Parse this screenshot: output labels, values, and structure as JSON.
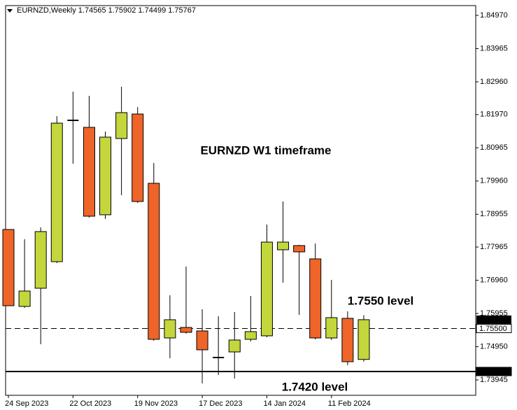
{
  "chart_data": {
    "type": "candlestick",
    "title": "EURNZD,Weekly  1.74565 1.75902 1.74499 1.75767",
    "categories": [
      "24 Sep 2023",
      null,
      null,
      null,
      "22 Oct 2023",
      null,
      null,
      null,
      "19 Nov 2023",
      null,
      null,
      null,
      "17 Dec 2023",
      null,
      null,
      null,
      "14 Jan 2024",
      null,
      null,
      null,
      "11 Feb 2024",
      null,
      null
    ],
    "open": [
      1.78495,
      1.76168,
      1.76718,
      1.77522,
      1.81775,
      1.81584,
      1.7894,
      1.81246,
      1.81987,
      1.79892,
      1.75215,
      1.75533,
      1.75427,
      1.74623,
      1.74792,
      1.75173,
      1.75279,
      1.77882,
      1.78009,
      1.77606,
      1.75215,
      1.75808,
      1.74565
    ],
    "high": [
      1.785,
      1.78199,
      1.78559,
      1.81923,
      1.82664,
      1.82537,
      1.81458,
      1.82812,
      1.82198,
      1.80505,
      1.76506,
      1.77374,
      1.76083,
      1.75871,
      1.75998,
      1.76485,
      1.78643,
      1.79341,
      1.7803,
      1.78072,
      1.76972,
      1.76019,
      1.75902
    ],
    "low": [
      1.7618,
      1.76125,
      1.75025,
      1.77479,
      1.80484,
      1.78855,
      1.78813,
      1.79532,
      1.79299,
      1.75131,
      1.74602,
      1.75343,
      1.7384,
      1.74094,
      1.73988,
      1.7511,
      1.75237,
      1.76887,
      1.75914,
      1.75173,
      1.75152,
      1.7439,
      1.74499
    ],
    "close": [
      1.76189,
      1.76633,
      1.78432,
      1.81711,
      1.81796,
      1.78897,
      1.81288,
      1.82029,
      1.79341,
      1.75173,
      1.75766,
      1.75385,
      1.74856,
      1.74602,
      1.75152,
      1.75406,
      1.78114,
      1.78114,
      1.77818,
      1.75215,
      1.75829,
      1.74496,
      1.75767
    ],
    "up_color": "#c3d63c",
    "down_color": "#ef6428",
    "ylim": [
      1.7348,
      1.85266
    ],
    "yticks": [
      {
        "value": 1.8497,
        "label": "1.84970"
      },
      {
        "value": 1.83965,
        "label": "1.83965"
      },
      {
        "value": 1.8296,
        "label": "1.82960"
      },
      {
        "value": 1.8197,
        "label": "1.81970"
      },
      {
        "value": 1.80965,
        "label": "1.80965"
      },
      {
        "value": 1.7996,
        "label": "1.79960"
      },
      {
        "value": 1.78955,
        "label": "1.78955"
      },
      {
        "value": 1.77965,
        "label": "1.77965"
      },
      {
        "value": 1.7696,
        "label": "1.76960"
      },
      {
        "value": 1.75955,
        "label": "1.75955"
      },
      {
        "value": 1.7495,
        "label": "1.74950"
      },
      {
        "value": 1.73945,
        "label": "1.73945"
      }
    ],
    "hlines": [
      {
        "value": 1.755,
        "label": "1.75500",
        "style": "dashed"
      },
      {
        "value": 1.742,
        "label": "1.74200",
        "style": "solid"
      }
    ],
    "last_price": {
      "value": 1.75767,
      "label": "1.75767"
    },
    "annotations": [
      "EURNZD W1 timeframe",
      "1.7550 level",
      "1.7420 level"
    ]
  }
}
